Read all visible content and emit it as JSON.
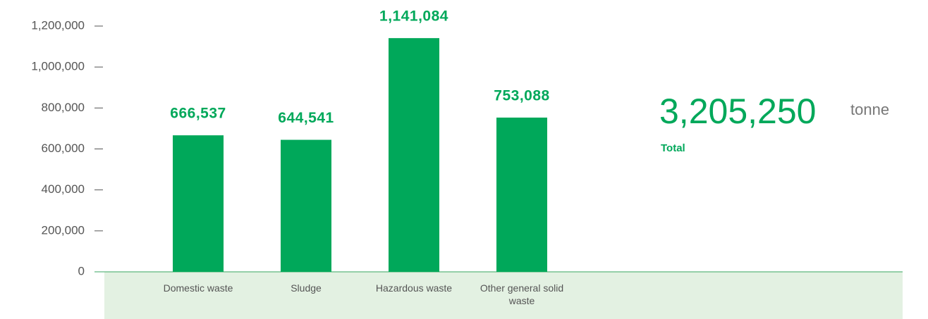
{
  "chart_data": {
    "type": "bar",
    "categories": [
      "Domestic waste",
      "Sludge",
      "Hazardous waste",
      "Other general solid waste"
    ],
    "values": [
      666537,
      644541,
      1141084,
      753088
    ],
    "value_labels": [
      "666,537",
      "644,541",
      "1,141,084",
      "753,088"
    ],
    "color": "#00a85a",
    "ylim": [
      0,
      1200000
    ],
    "yticks": [
      0,
      {
        "value": 200000,
        "label": "200,000"
      },
      {
        "value": 400000,
        "label": "400,000"
      },
      {
        "value": 600000,
        "label": "600,000"
      },
      {
        "value": 800000,
        "label": "800,000"
      },
      {
        "value": 1000000,
        "label": "1,000,000"
      },
      {
        "value": 1200000,
        "label": "1,200,000"
      }
    ],
    "total_text": "3,205,250",
    "unit": "tonne",
    "total_caption": "Total"
  }
}
